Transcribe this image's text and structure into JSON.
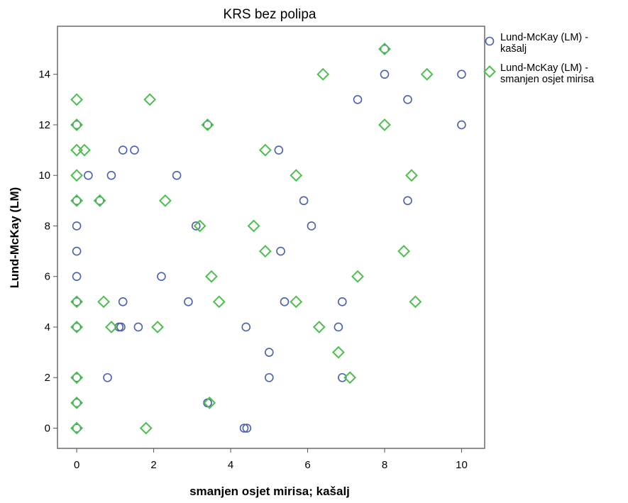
{
  "chart_data": {
    "type": "scatter",
    "title": "KRS bez polipa",
    "xlabel": "smanjen osjet mirisa; kašalj",
    "ylabel": "Lund-McKay (LM)",
    "xlim": [
      -0.5,
      10.6
    ],
    "ylim": [
      -0.8,
      15.9
    ],
    "xticks": [
      0,
      2,
      4,
      6,
      8,
      10
    ],
    "yticks": [
      0,
      2,
      4,
      6,
      8,
      10,
      12,
      14
    ],
    "grid": false,
    "legend_position": "top-right",
    "series": [
      {
        "name": "Lund-McKay (LM) - kašalj",
        "marker": "circle",
        "color": "#4a5fae",
        "points": [
          [
            0,
            0
          ],
          [
            0,
            1
          ],
          [
            0,
            2
          ],
          [
            0,
            4
          ],
          [
            0,
            5
          ],
          [
            0,
            6
          ],
          [
            0,
            7
          ],
          [
            0,
            8
          ],
          [
            0,
            9
          ],
          [
            0,
            12
          ],
          [
            0.3,
            10
          ],
          [
            0.6,
            9
          ],
          [
            0.8,
            2
          ],
          [
            0.9,
            10
          ],
          [
            1.1,
            4
          ],
          [
            1.15,
            4
          ],
          [
            1.2,
            11
          ],
          [
            1.2,
            5
          ],
          [
            1.5,
            11
          ],
          [
            1.6,
            4
          ],
          [
            2.2,
            6
          ],
          [
            2.6,
            10
          ],
          [
            2.9,
            5
          ],
          [
            3.1,
            8
          ],
          [
            3.4,
            12
          ],
          [
            3.4,
            1
          ],
          [
            4.35,
            0
          ],
          [
            4.42,
            0
          ],
          [
            4.4,
            4
          ],
          [
            5.0,
            3
          ],
          [
            5.0,
            2
          ],
          [
            5.25,
            11
          ],
          [
            5.3,
            7
          ],
          [
            5.4,
            5
          ],
          [
            5.9,
            9
          ],
          [
            6.1,
            8
          ],
          [
            6.8,
            4
          ],
          [
            6.9,
            5
          ],
          [
            6.9,
            2
          ],
          [
            7.3,
            13
          ],
          [
            8.0,
            14
          ],
          [
            8.0,
            15
          ],
          [
            8.6,
            13
          ],
          [
            8.6,
            9
          ],
          [
            10.0,
            14
          ],
          [
            10.0,
            12
          ]
        ]
      },
      {
        "name": "Lund-McKay (LM) - smanjen osjet mirisa",
        "marker": "diamond",
        "color": "#4cbf4e",
        "points": [
          [
            0,
            0
          ],
          [
            0,
            1
          ],
          [
            0,
            2
          ],
          [
            0,
            4
          ],
          [
            0,
            5
          ],
          [
            0,
            9
          ],
          [
            0,
            10
          ],
          [
            0,
            11
          ],
          [
            0,
            12
          ],
          [
            0,
            13
          ],
          [
            0.2,
            11
          ],
          [
            0.6,
            9
          ],
          [
            0.7,
            5
          ],
          [
            0.9,
            4
          ],
          [
            1.8,
            0
          ],
          [
            1.9,
            13
          ],
          [
            2.1,
            4
          ],
          [
            2.3,
            9
          ],
          [
            3.2,
            8
          ],
          [
            3.4,
            12
          ],
          [
            3.45,
            1
          ],
          [
            3.5,
            6
          ],
          [
            3.7,
            5
          ],
          [
            4.6,
            8
          ],
          [
            4.9,
            11
          ],
          [
            4.9,
            7
          ],
          [
            5.7,
            10
          ],
          [
            5.7,
            5
          ],
          [
            6.3,
            4
          ],
          [
            6.4,
            14
          ],
          [
            6.8,
            3
          ],
          [
            7.1,
            2
          ],
          [
            7.3,
            6
          ],
          [
            8.0,
            15
          ],
          [
            8.0,
            12
          ],
          [
            8.5,
            7
          ],
          [
            8.7,
            10
          ],
          [
            8.8,
            5
          ],
          [
            9.1,
            14
          ]
        ]
      }
    ]
  }
}
